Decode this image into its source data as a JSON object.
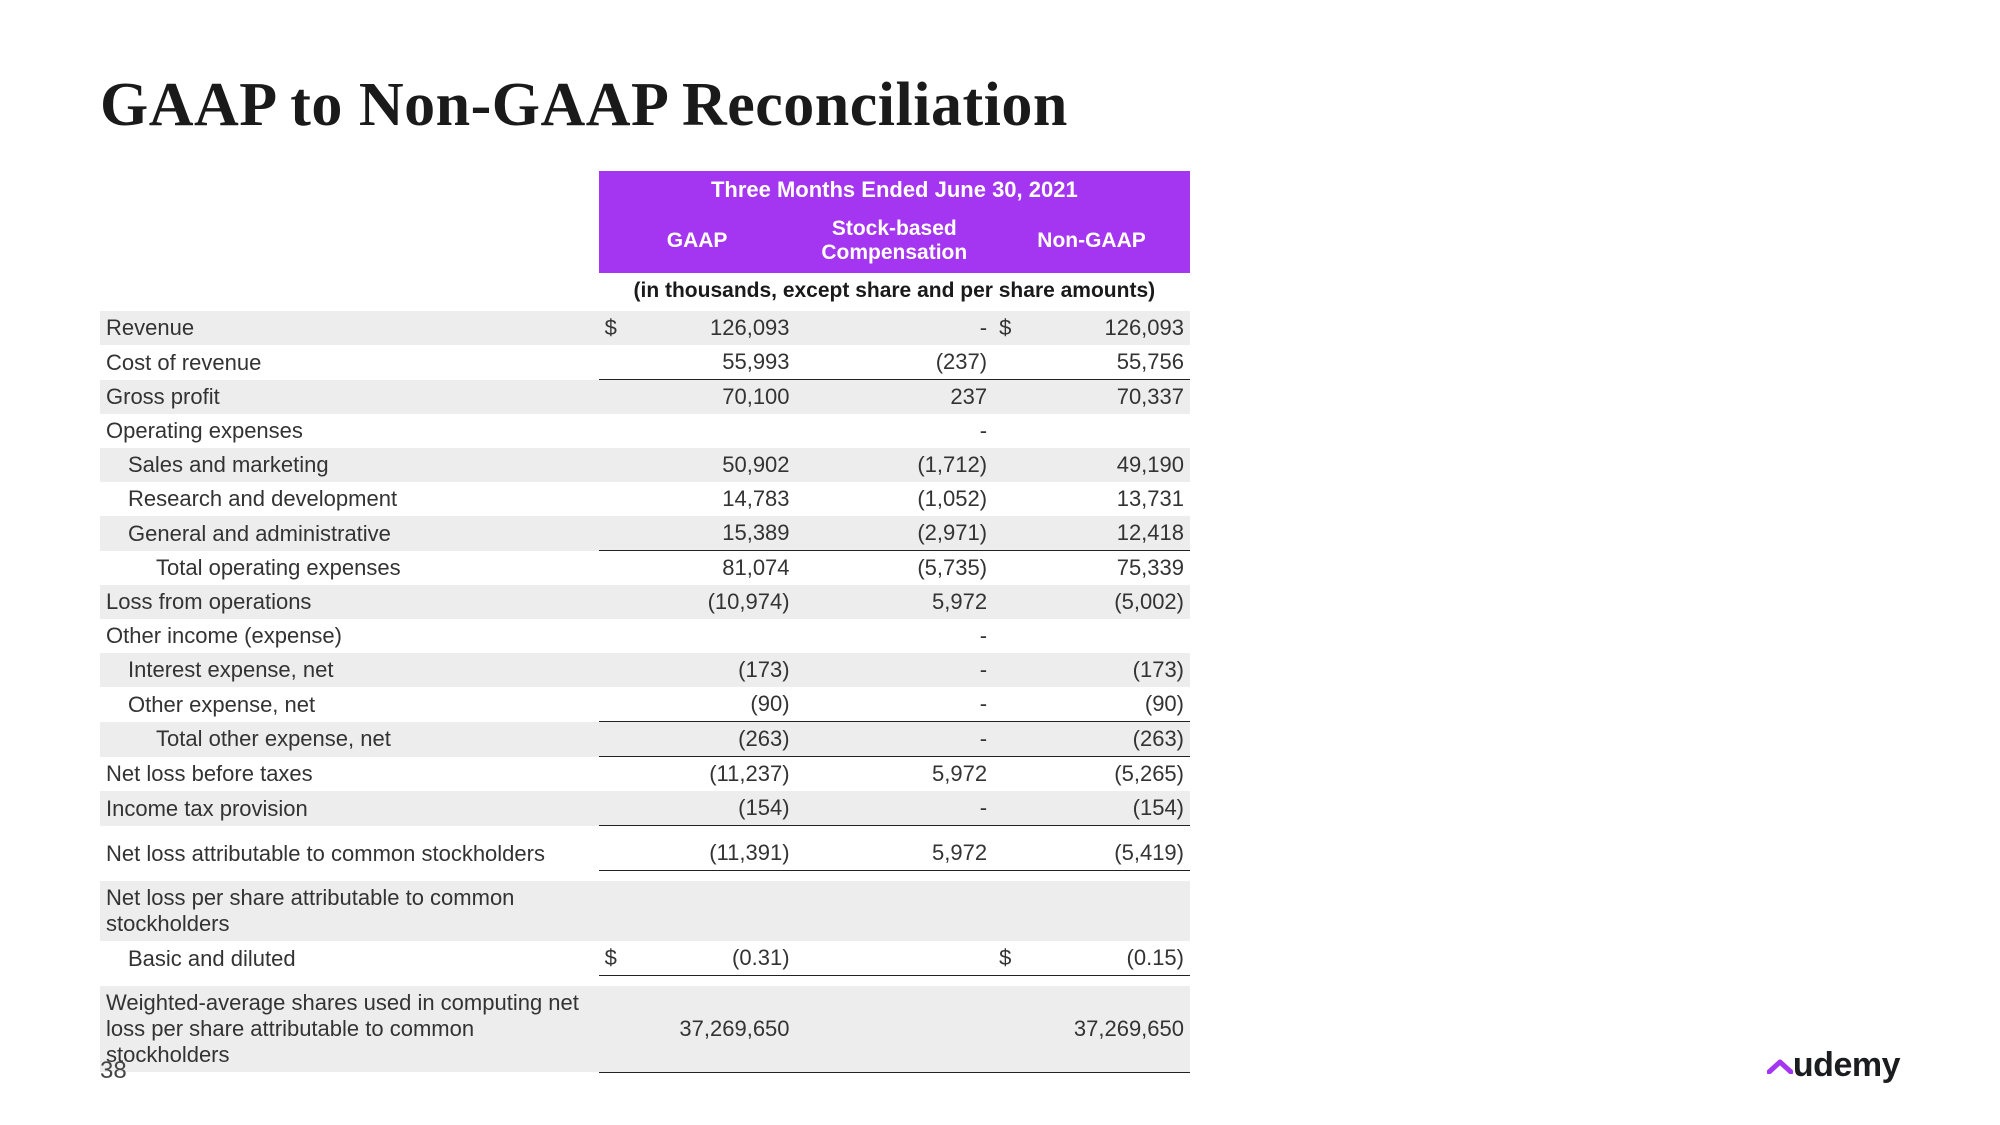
{
  "slide": {
    "title": "GAAP to Non-GAAP Reconciliation",
    "page_number": "38",
    "brand": "udemy"
  },
  "colors": {
    "header_bg": "#a435f0",
    "header_text": "#ffffff",
    "row_shade": "#ededed",
    "text": "#1a1a1a",
    "brand_accent": "#a435f0"
  },
  "table": {
    "period_header": "Three Months Ended June 30, 2021",
    "column_headers": {
      "gaap": "GAAP",
      "sbc": "Stock-based Compensation",
      "nongaap": "Non-GAAP"
    },
    "units_note": "(in thousands, except share and per share amounts)",
    "currency_symbol": "$",
    "rows": [
      {
        "label": "Revenue",
        "indent": 0,
        "shade": true,
        "gaap": "126,093",
        "sbc": "-",
        "nongaap": "126,093",
        "lead_cur": true,
        "mid_cur": true
      },
      {
        "label": "Cost of revenue",
        "indent": 0,
        "shade": false,
        "gaap": "55,993",
        "sbc": "(237)",
        "nongaap": "55,756",
        "underline_after": true
      },
      {
        "label": "Gross profit",
        "indent": 0,
        "shade": true,
        "gaap": "70,100",
        "sbc": "237",
        "nongaap": "70,337"
      },
      {
        "label": "Operating expenses",
        "indent": 0,
        "shade": false,
        "gaap": "",
        "sbc": "-",
        "nongaap": ""
      },
      {
        "label": "Sales and marketing",
        "indent": 1,
        "shade": true,
        "gaap": "50,902",
        "sbc": "(1,712)",
        "nongaap": "49,190"
      },
      {
        "label": "Research and development",
        "indent": 1,
        "shade": false,
        "gaap": "14,783",
        "sbc": "(1,052)",
        "nongaap": "13,731"
      },
      {
        "label": "General and administrative",
        "indent": 1,
        "shade": true,
        "gaap": "15,389",
        "sbc": "(2,971)",
        "nongaap": "12,418",
        "underline_after": true
      },
      {
        "label": "Total operating expenses",
        "indent": 2,
        "shade": false,
        "gaap": "81,074",
        "sbc": "(5,735)",
        "nongaap": "75,339"
      },
      {
        "label": "Loss from operations",
        "indent": 0,
        "shade": true,
        "gaap": "(10,974)",
        "sbc": "5,972",
        "nongaap": "(5,002)"
      },
      {
        "label": "Other income (expense)",
        "indent": 0,
        "shade": false,
        "gaap": "",
        "sbc": "-",
        "nongaap": ""
      },
      {
        "label": "Interest expense, net",
        "indent": 1,
        "shade": true,
        "gaap": "(173)",
        "sbc": "-",
        "nongaap": "(173)"
      },
      {
        "label": "Other expense, net",
        "indent": 1,
        "shade": false,
        "gaap": "(90)",
        "sbc": "-",
        "nongaap": "(90)",
        "underline_after": true
      },
      {
        "label": "Total other expense, net",
        "indent": 2,
        "shade": true,
        "gaap": "(263)",
        "sbc": "-",
        "nongaap": "(263)",
        "underline_after": true
      },
      {
        "label": "Net loss before taxes",
        "indent": 0,
        "shade": false,
        "gaap": "(11,237)",
        "sbc": "5,972",
        "nongaap": "(5,265)"
      },
      {
        "label": "Income tax provision",
        "indent": 0,
        "shade": true,
        "gaap": "(154)",
        "sbc": "-",
        "nongaap": "(154)",
        "underline_after": true,
        "gap_after": true
      },
      {
        "label": "Net loss attributable to common stockholders",
        "indent": 0,
        "shade": false,
        "gaap": "(11,391)",
        "sbc": "5,972",
        "nongaap": "(5,419)",
        "underline_after": true,
        "gap_after": true
      },
      {
        "label": "Net loss per share attributable to common stockholders",
        "indent": 0,
        "shade": true,
        "gaap": "",
        "sbc": "",
        "nongaap": ""
      },
      {
        "label": "Basic and diluted",
        "indent": 1,
        "shade": false,
        "gaap": "(0.31)",
        "sbc": "",
        "nongaap": "(0.15)",
        "lead_cur": true,
        "mid_cur": true,
        "underline_after": true,
        "gap_after": true
      },
      {
        "label": "Weighted-average shares used in computing net loss per share attributable to common stockholders",
        "indent": 0,
        "shade": true,
        "gaap": "37,269,650",
        "sbc": "",
        "nongaap": "37,269,650",
        "underline_after": true
      }
    ]
  }
}
